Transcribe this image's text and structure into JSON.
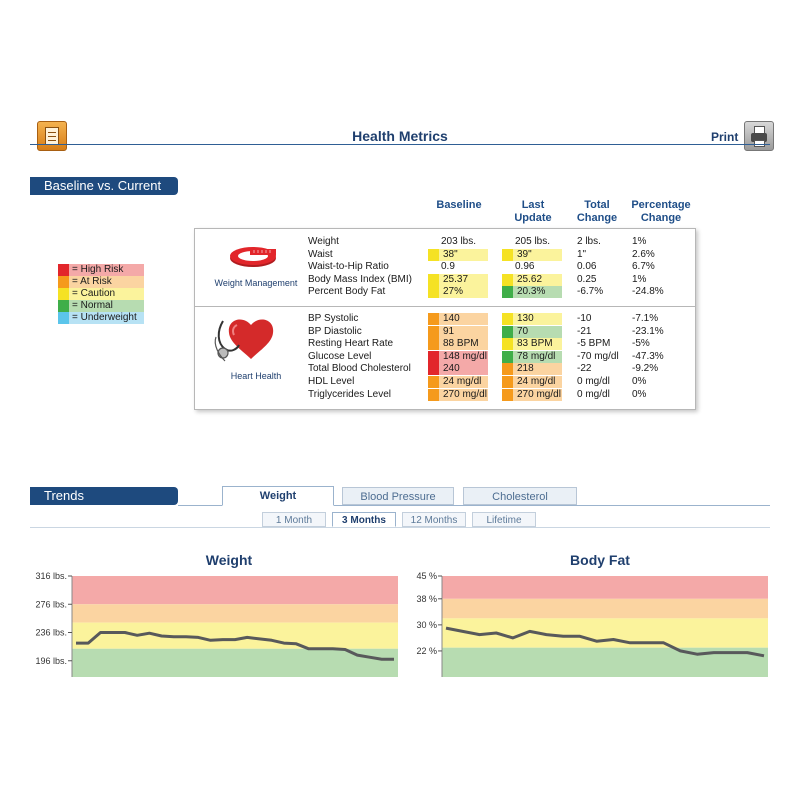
{
  "header": {
    "title": "Health Metrics",
    "print_label": "Print"
  },
  "baseline_section": {
    "title": "Baseline vs. Current",
    "columns": {
      "baseline": "Baseline",
      "last_update": "Last\nUpdate",
      "total_change": "Total\nChange",
      "percentage_change": "Percentage\nChange"
    }
  },
  "legend": [
    {
      "label": "= High Risk",
      "color": "#e2262b",
      "bg": "#f4a9a8"
    },
    {
      "label": "= At Risk",
      "color": "#f59a1c",
      "bg": "#fbd4a1"
    },
    {
      "label": "= Caution",
      "color": "#f5e224",
      "bg": "#fbf39c"
    },
    {
      "label": "= Normal",
      "color": "#3fae49",
      "bg": "#b7dcb1"
    },
    {
      "label": "= Underweight",
      "color": "#5bc5eb",
      "bg": "#b7e2f4"
    }
  ],
  "groups": [
    {
      "label": "Weight Management",
      "icon": "tape-measure-icon",
      "rows": [
        {
          "name": "Weight",
          "baseline": "203 lbs.",
          "baseline_status": "none",
          "last": "205 lbs.",
          "last_status": "none",
          "total": "2 lbs.",
          "pct": "1%"
        },
        {
          "name": "Waist",
          "baseline": "38\"",
          "baseline_status": "caution",
          "last": "39\"",
          "last_status": "caution",
          "total": "1\"",
          "pct": "2.6%"
        },
        {
          "name": "Waist-to-Hip Ratio",
          "baseline": "0.9",
          "baseline_status": "none",
          "last": "0.96",
          "last_status": "none",
          "total": "0.06",
          "pct": "6.7%"
        },
        {
          "name": "Body Mass Index (BMI)",
          "baseline": "25.37",
          "baseline_status": "caution",
          "last": "25.62",
          "last_status": "caution",
          "total": "0.25",
          "pct": "1%"
        },
        {
          "name": "Percent Body Fat",
          "baseline": "27%",
          "baseline_status": "caution",
          "last": "20.3%",
          "last_status": "normal",
          "total": "-6.7%",
          "pct": "-24.8%"
        }
      ]
    },
    {
      "label": "Heart Health",
      "icon": "heart-stethoscope-icon",
      "rows": [
        {
          "name": "BP Systolic",
          "baseline": "140",
          "baseline_status": "at-risk",
          "last": "130",
          "last_status": "caution",
          "total": "-10",
          "pct": "-7.1%"
        },
        {
          "name": "BP Diastolic",
          "baseline": "91",
          "baseline_status": "at-risk",
          "last": "70",
          "last_status": "normal",
          "total": "-21",
          "pct": "-23.1%"
        },
        {
          "name": "Resting Heart Rate",
          "baseline": "88 BPM",
          "baseline_status": "at-risk",
          "last": "83 BPM",
          "last_status": "caution",
          "total": "-5 BPM",
          "pct": "-5%"
        },
        {
          "name": "Glucose Level",
          "baseline": "148 mg/dl",
          "baseline_status": "high-risk",
          "last": "78 mg/dl",
          "last_status": "normal",
          "total": "-70 mg/dl",
          "pct": "-47.3%"
        },
        {
          "name": "Total Blood Cholesterol",
          "baseline": "240",
          "baseline_status": "high-risk",
          "last": "218",
          "last_status": "at-risk",
          "total": "-22",
          "pct": "-9.2%"
        },
        {
          "name": "HDL Level",
          "baseline": "24 mg/dl",
          "baseline_status": "at-risk",
          "last": "24 mg/dl",
          "last_status": "at-risk",
          "total": "0 mg/dl",
          "pct": "0%"
        },
        {
          "name": "Triglycerides Level",
          "baseline": "270 mg/dl",
          "baseline_status": "at-risk",
          "last": "270 mg/dl",
          "last_status": "at-risk",
          "total": "0 mg/dl",
          "pct": "0%"
        }
      ]
    }
  ],
  "trends": {
    "title": "Trends",
    "tabs": [
      "Weight",
      "Blood Pressure",
      "Cholesterol"
    ],
    "active_tab": "Weight",
    "ranges": [
      "1 Month",
      "3 Months",
      "12 Months",
      "Lifetime"
    ],
    "active_range": "3 Months"
  },
  "chart_data": [
    {
      "type": "line",
      "title": "Weight",
      "yticks": [
        {
          "value": 316,
          "label": "316 lbs."
        },
        {
          "value": 276,
          "label": "276 lbs."
        },
        {
          "value": 236,
          "label": "236 lbs."
        },
        {
          "value": 196,
          "label": "196 lbs."
        }
      ],
      "ylim": [
        173,
        316
      ],
      "bands": [
        {
          "from": 276,
          "to": 316,
          "color": "#f4a9a8"
        },
        {
          "from": 250,
          "to": 276,
          "color": "#fbd4a1"
        },
        {
          "from": 213,
          "to": 250,
          "color": "#fbf39c"
        },
        {
          "from": 173,
          "to": 213,
          "color": "#b7dcb1"
        }
      ],
      "series": [
        {
          "values": [
            221,
            221,
            236,
            236,
            236,
            232,
            235,
            231,
            230,
            230,
            229,
            225,
            226,
            226,
            229,
            227,
            225,
            221,
            220,
            213,
            213,
            213,
            212,
            204,
            201,
            198,
            198
          ]
        }
      ],
      "line_color": "#58595b"
    },
    {
      "type": "line",
      "title": "Body Fat",
      "yticks": [
        {
          "value": 45,
          "label": "45 %"
        },
        {
          "value": 38,
          "label": "38 %"
        },
        {
          "value": 30,
          "label": "30 %"
        },
        {
          "value": 22,
          "label": "22 %"
        }
      ],
      "ylim": [
        14,
        45
      ],
      "bands": [
        {
          "from": 38,
          "to": 45,
          "color": "#f4a9a8"
        },
        {
          "from": 32,
          "to": 38,
          "color": "#fbd4a1"
        },
        {
          "from": 23,
          "to": 32,
          "color": "#fbf39c"
        },
        {
          "from": 14,
          "to": 23,
          "color": "#b7dcb1"
        }
      ],
      "series": [
        {
          "values": [
            29,
            28,
            27,
            27.5,
            26,
            28,
            27,
            26.5,
            26.5,
            25,
            25.5,
            24.5,
            24.5,
            24.5,
            22,
            21,
            21.5,
            21.5,
            21.5,
            20.5
          ]
        }
      ],
      "line_color": "#58595b"
    }
  ]
}
